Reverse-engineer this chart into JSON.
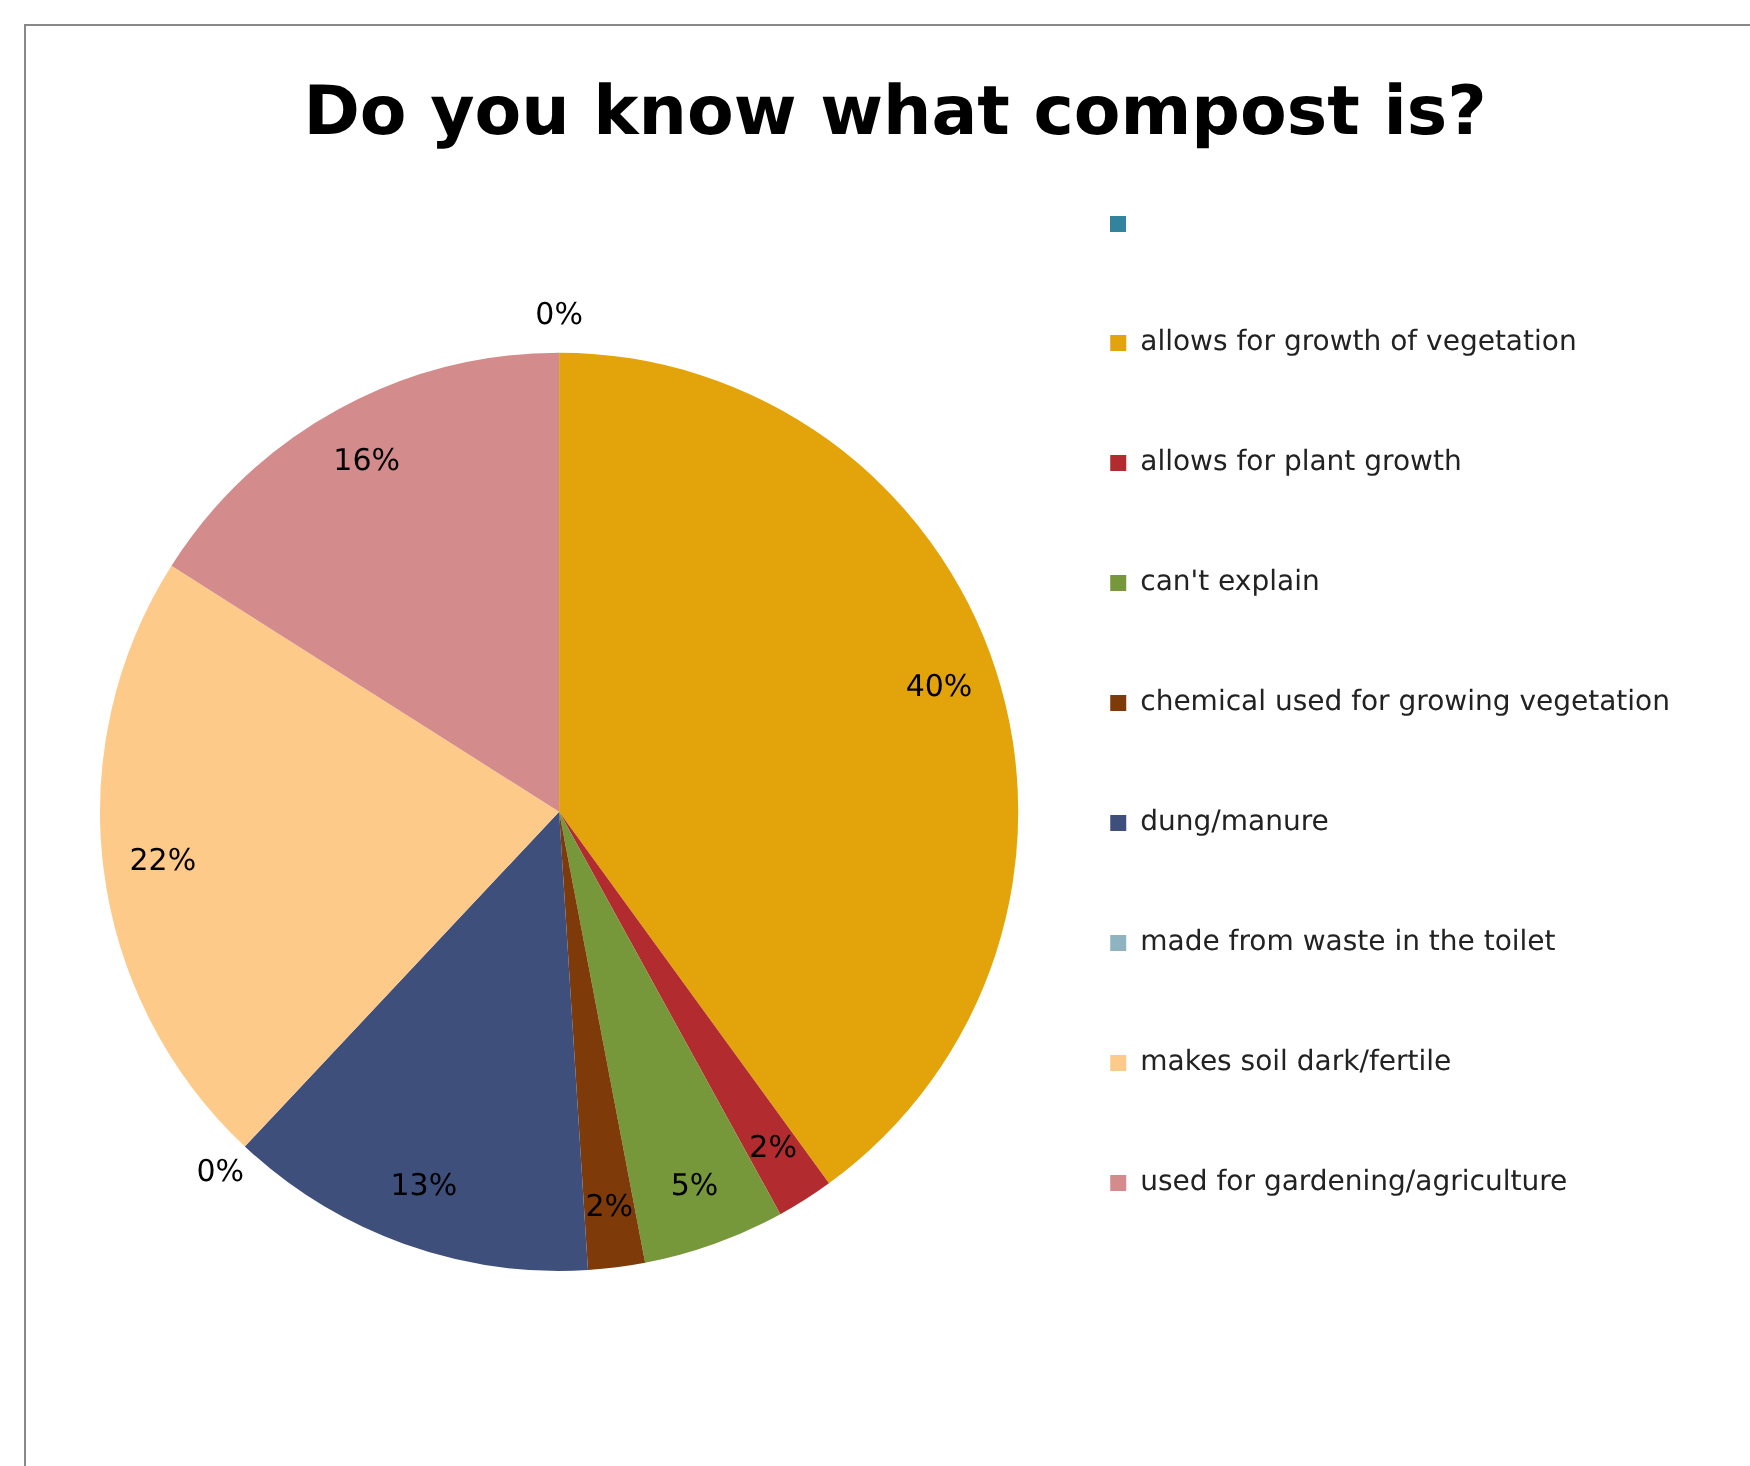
{
  "chart_data": {
    "type": "pie",
    "title": "Do you know what compost is?",
    "categories": [
      null,
      "allows for growth of vegetation",
      "allows for plant growth",
      "can't explain",
      "chemical used for growing vegetation",
      "dung/manure",
      "made from waste in the toilet",
      "makes soil dark/fertile",
      "used for gardening/agriculture"
    ],
    "values": [
      0,
      40,
      2,
      5,
      2,
      13,
      0,
      22,
      16
    ],
    "value_labels": [
      "0%",
      "40%",
      "2%",
      "5%",
      "2%",
      "13%",
      "0%",
      "22%",
      "16%"
    ],
    "colors": [
      "#31849b",
      "#e2a40a",
      "#b22b2e",
      "#76983a",
      "#7f3a0a",
      "#3e4f7b",
      "#8fb3c0",
      "#fdca8a",
      "#d48b8b"
    ],
    "legend": "right"
  }
}
